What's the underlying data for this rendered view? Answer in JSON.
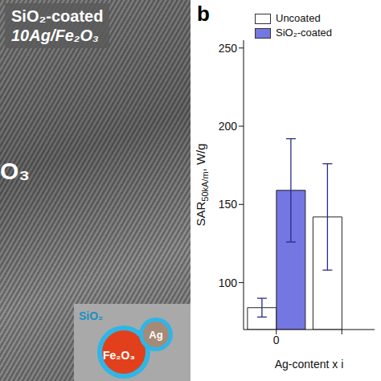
{
  "panel_a": {
    "title_lines": [
      "SiO₂-coated",
      "10Ag/Fe₂O₃"
    ],
    "partial_label": "O₃",
    "inset_labels": {
      "shell": "SiO₂",
      "particle": "Ag",
      "core": "Fe₂O₃"
    }
  },
  "chart_data": {
    "type": "bar",
    "panel_label": "b",
    "categories": [
      "0",
      null
    ],
    "series": [
      {
        "name": "Uncoated",
        "color": "#ffffff",
        "values": [
          84,
          142
        ],
        "errors": [
          6,
          34
        ]
      },
      {
        "name": "SiO₂-coated",
        "color": "#7476e2",
        "values": [
          159,
          null
        ],
        "errors": [
          33,
          null
        ]
      }
    ],
    "y_label": {
      "main": "SAR",
      "subscript": "50kA/m",
      "unit": ", W/g"
    },
    "x_label": "Ag-content x i",
    "ylim": [
      70,
      255
    ],
    "yticks": [
      100,
      150,
      200,
      250
    ],
    "legend": "upper left"
  }
}
